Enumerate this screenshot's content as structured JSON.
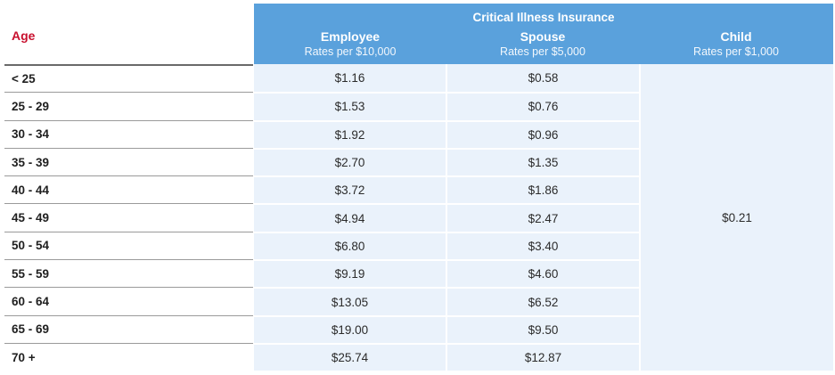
{
  "header": {
    "age_label": "Age",
    "band_title": "Critical Illness Insurance",
    "columns": [
      {
        "name": "Employee",
        "sub": "Rates per $10,000"
      },
      {
        "name": "Spouse",
        "sub": "Rates per $5,000"
      },
      {
        "name": "Child",
        "sub": "Rates per $1,000"
      }
    ]
  },
  "rows": [
    {
      "age": "< 25",
      "employee": "$1.16",
      "spouse": "$0.58"
    },
    {
      "age": "25 - 29",
      "employee": "$1.53",
      "spouse": "$0.76"
    },
    {
      "age": "30 - 34",
      "employee": "$1.92",
      "spouse": "$0.96"
    },
    {
      "age": "35 - 39",
      "employee": "$2.70",
      "spouse": "$1.35"
    },
    {
      "age": "40 - 44",
      "employee": "$3.72",
      "spouse": "$1.86"
    },
    {
      "age": "45 - 49",
      "employee": "$4.94",
      "spouse": "$2.47"
    },
    {
      "age": "50 - 54",
      "employee": "$6.80",
      "spouse": "$3.40"
    },
    {
      "age": "55 - 59",
      "employee": "$9.19",
      "spouse": "$4.60"
    },
    {
      "age": "60 - 64",
      "employee": "$13.05",
      "spouse": "$6.52"
    },
    {
      "age": "65 - 69",
      "employee": "$19.00",
      "spouse": "$9.50"
    },
    {
      "age": "70 +",
      "employee": "$25.74",
      "spouse": "$12.87"
    }
  ],
  "child_rate": "$0.21",
  "colors": {
    "header_blue": "#5aa1dc",
    "cell_blue": "#eaf2fb",
    "age_red": "#c8102e"
  }
}
